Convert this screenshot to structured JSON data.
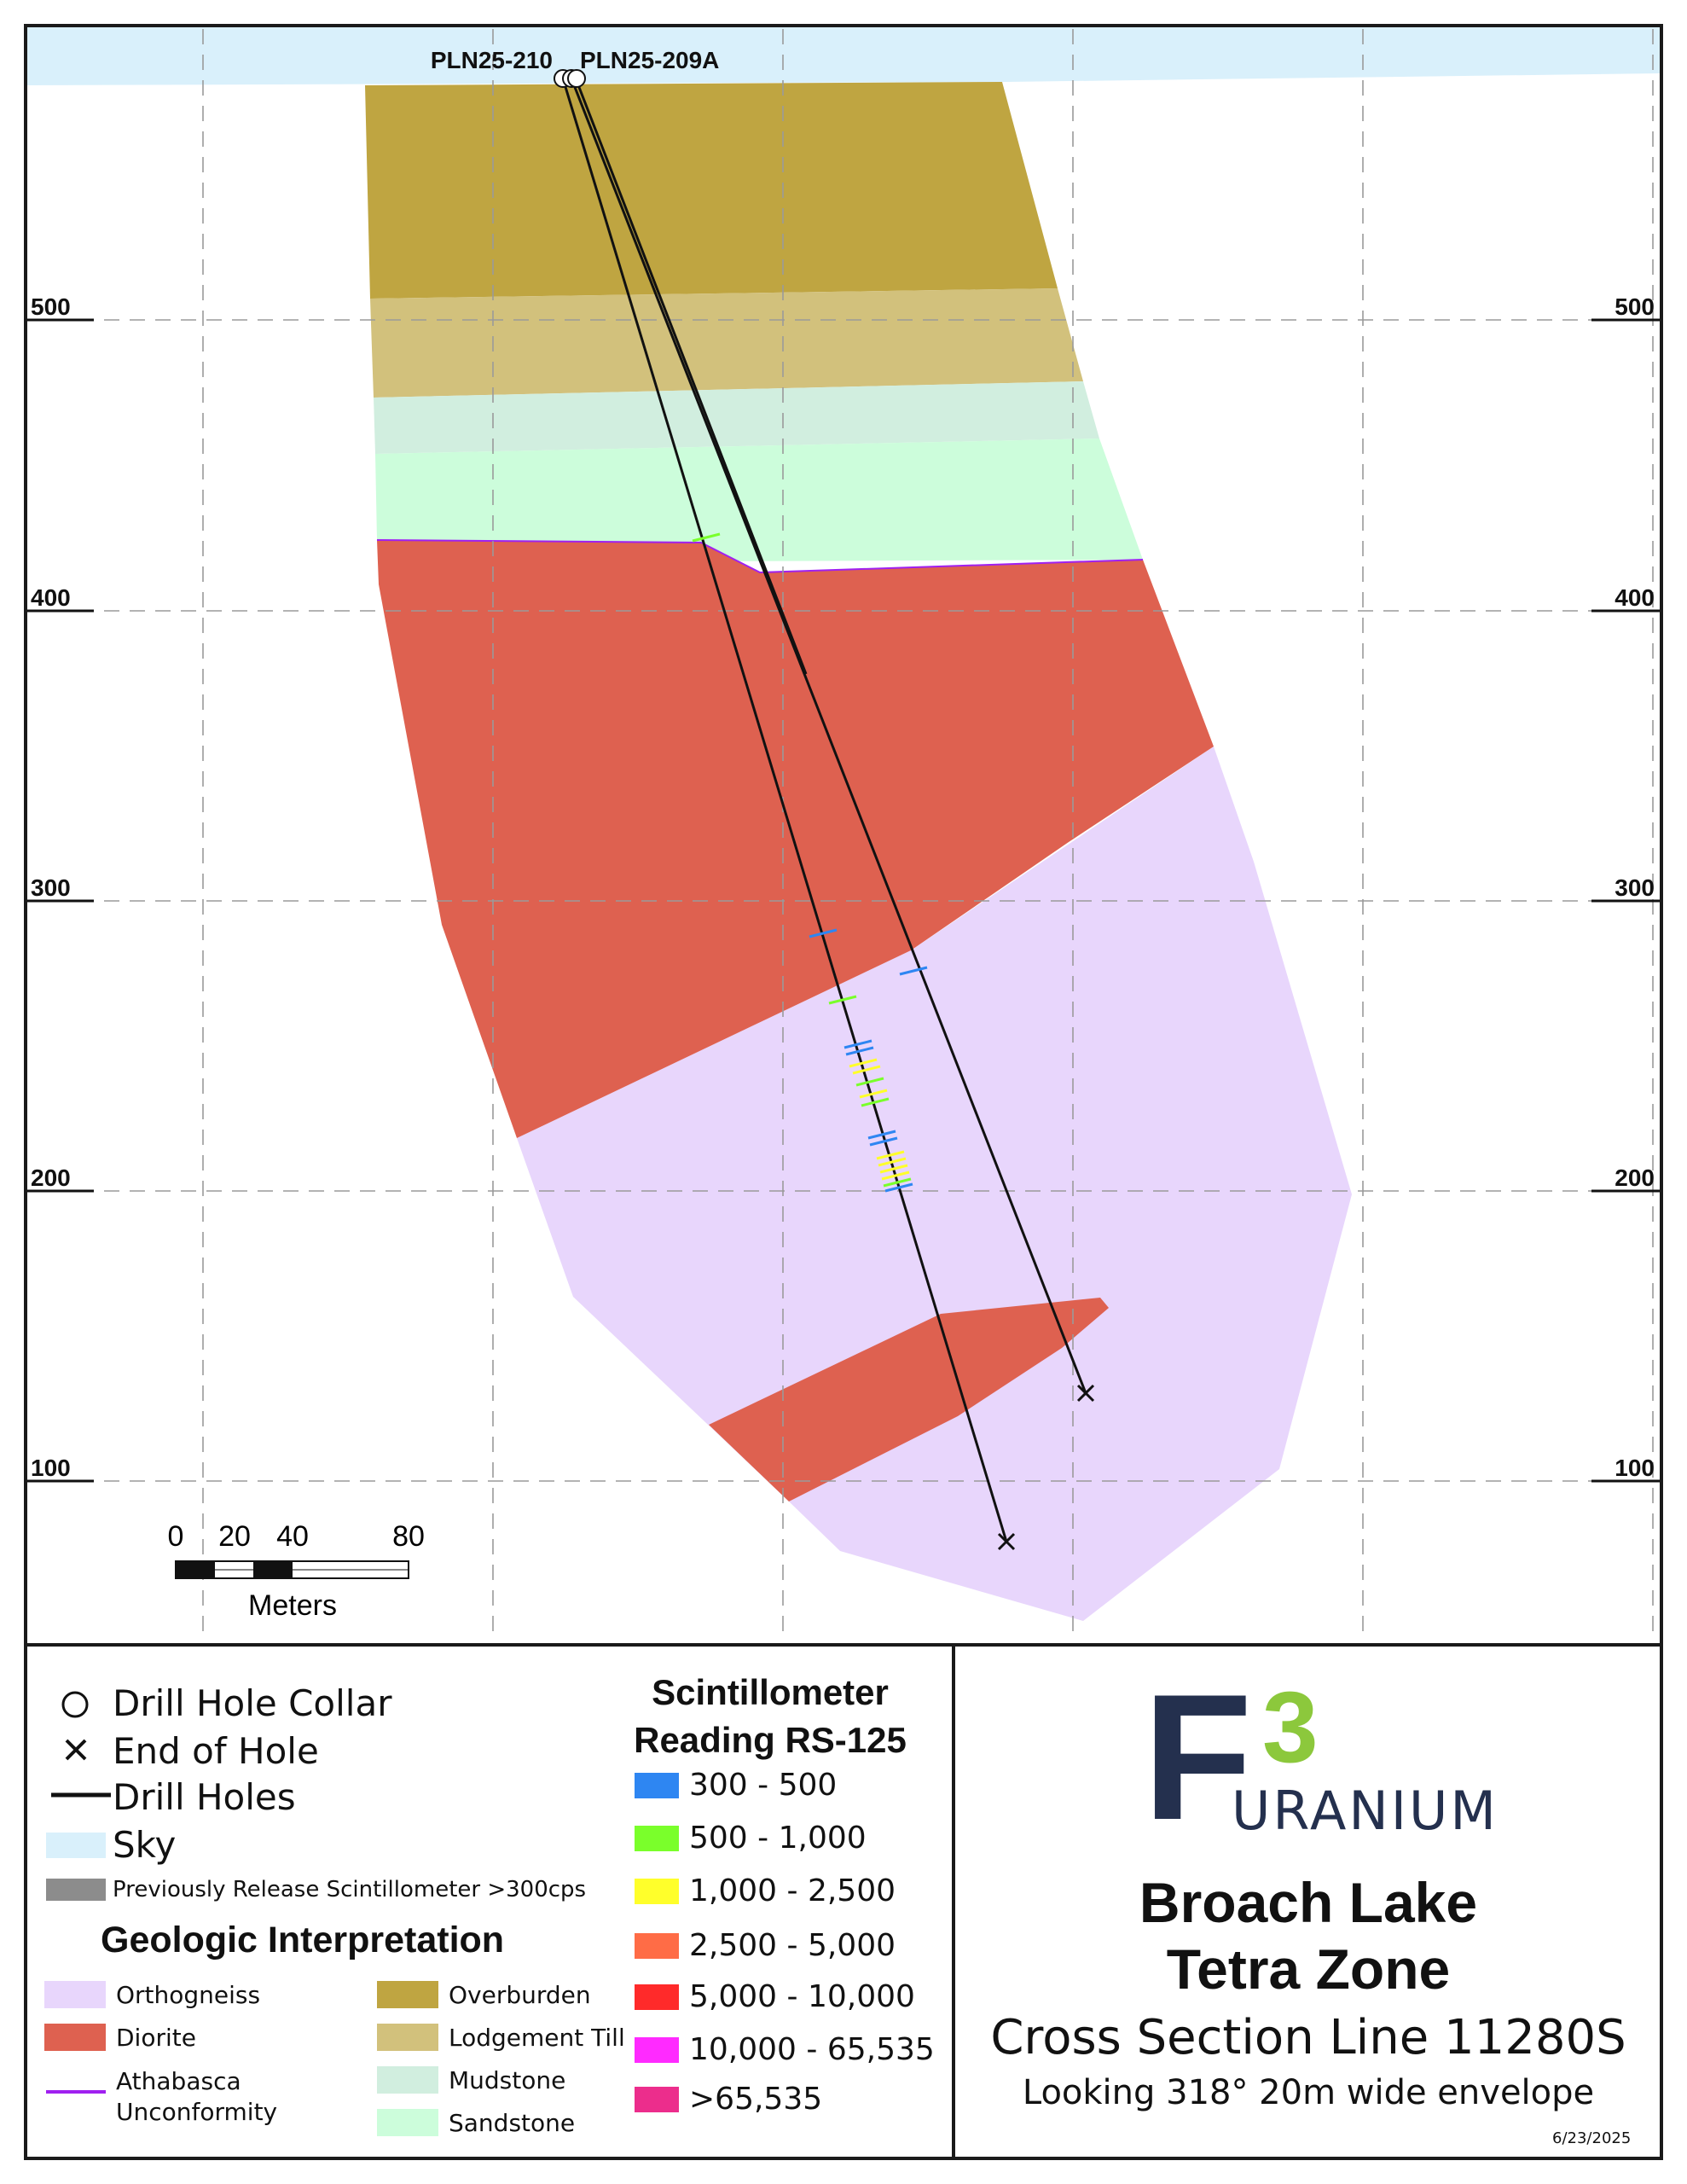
{
  "drill_holes": {
    "label_a": "PLN25-210",
    "label_b": "PLN25-209A"
  },
  "axis": {
    "ticks": [
      "500",
      "400",
      "300",
      "200",
      "100"
    ]
  },
  "scale_bar": {
    "labels": [
      "0",
      "20",
      "40",
      "80"
    ],
    "unit": "Meters"
  },
  "legend": {
    "symbols": [
      {
        "label": "Drill Hole Collar"
      },
      {
        "label": "End of Hole"
      },
      {
        "label": "Drill Holes"
      },
      {
        "label": "Sky",
        "color": "#d9f0fb"
      },
      {
        "label": "Previously Release Scintillometer >300cps",
        "color": "#8c8c8c"
      }
    ],
    "geo_title": "Geologic Interpretation",
    "geo_left": [
      {
        "label": "Orthogneiss",
        "color": "#e8d6fc"
      },
      {
        "label": "Diorite",
        "color": "#de6150"
      },
      {
        "label": "Athabasca\nUnconformity",
        "color": "#a020f0"
      }
    ],
    "geo_right": [
      {
        "label": "Overburden",
        "color": "#bfa541"
      },
      {
        "label": "Lodgement Till",
        "color": "#d2c17c"
      },
      {
        "label": "Mudstone",
        "color": "#d1eedf"
      },
      {
        "label": "Sandstone",
        "color": "#ccfddb"
      }
    ],
    "scint_title": "Scintillometer\nReading RS-125",
    "scint": [
      {
        "label": "300 - 500",
        "color": "#2e86f2"
      },
      {
        "label": "500 - 1,000",
        "color": "#7aff2b"
      },
      {
        "label": "1,000 - 2,500",
        "color": "#ffff2b"
      },
      {
        "label": "2,500 - 5,000",
        "color": "#ff6c46"
      },
      {
        "label": "5,000 - 10,000",
        "color": "#ff2a2a"
      },
      {
        "label": "10,000 - 65,535",
        "color": "#ff2aff"
      },
      {
        "label": ">65,535",
        "color": "#ec2d8c"
      }
    ]
  },
  "logo": {
    "f": "F",
    "three": "3",
    "word": "URANIUM",
    "navy": "#24304e",
    "green": "#8cc83c"
  },
  "title": {
    "line1": "Broach Lake",
    "line2": "Tetra Zone",
    "line3": "Cross Section Line 11280S",
    "line4": "Looking 318° 20m wide envelope"
  },
  "date": "6/23/2025",
  "colors": {
    "sky": "#d9f0fb",
    "overburden": "#bfa541",
    "till": "#d2c17c",
    "mudstone": "#d1eedf",
    "sandstone": "#ccfddb",
    "diorite": "#de6150",
    "orthogneiss": "#e8d6fc",
    "unconformity": "#a020f0",
    "grid": "#9a9a9a"
  }
}
